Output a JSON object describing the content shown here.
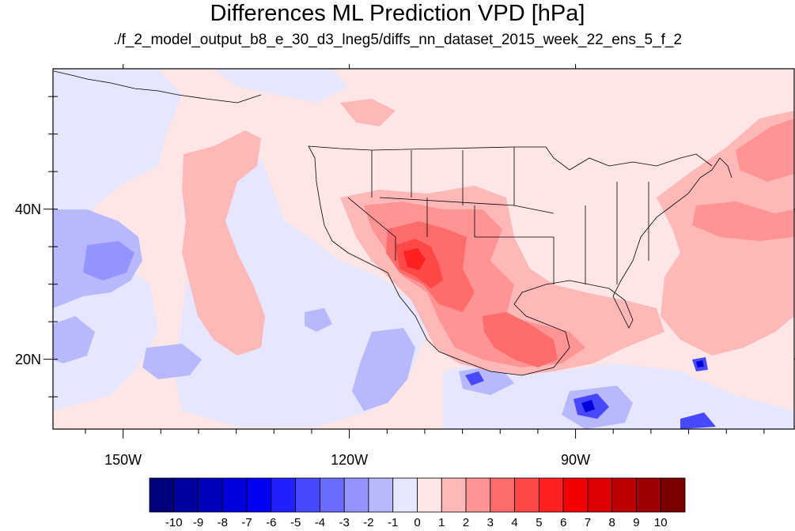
{
  "title": "Differences ML Prediction VPD [hPa]",
  "subtitle": "./f_2_model_output_b8_e_30_d3_lneg5/diffs_nn_dataset_2015_week_22_ens_5_f_2",
  "map": {
    "lon_range": [
      -159.3,
      -61
    ],
    "lat_range": [
      10.7,
      58.7
    ],
    "lon_labels": [
      {
        "value": -150,
        "text": "150W"
      },
      {
        "value": -120,
        "text": "120W"
      },
      {
        "value": -90,
        "text": "90W"
      }
    ],
    "lat_labels": [
      {
        "value": 40,
        "text": "40N"
      },
      {
        "value": 20,
        "text": "20N"
      }
    ],
    "background_color": "#ffe6e6"
  },
  "colorbar": {
    "labels": [
      "-10",
      "-9",
      "-8",
      "-7",
      "-6",
      "-5",
      "-4",
      "-3",
      "-2",
      "-1",
      "0",
      "1",
      "2",
      "3",
      "4",
      "5",
      "6",
      "7",
      "8",
      "9",
      "10"
    ],
    "colors": [
      "#00007a",
      "#00009c",
      "#0000bc",
      "#0000dc",
      "#0000f4",
      "#2020ff",
      "#4848ff",
      "#6c6cff",
      "#9494ff",
      "#b8b8ff",
      "#e6e6ff",
      "#ffe6e6",
      "#ffb8b8",
      "#ff9494",
      "#ff6c6c",
      "#ff4848",
      "#ff2020",
      "#f40000",
      "#dc0000",
      "#bc0000",
      "#9c0000",
      "#7a0000"
    ]
  }
}
